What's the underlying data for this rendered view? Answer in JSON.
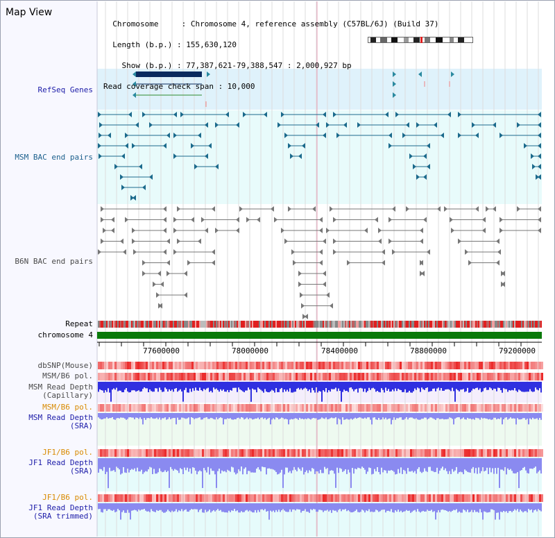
{
  "page": {
    "title": "Map View"
  },
  "info_lines": [
    "  Chromosome     : Chromosome 4, reference assembly (C57BL/6J) (Build 37)",
    "  Length (b.p.) : 155,630,120",
    "    Show (b.p.) : 77,387,621-79,388,547 : 2,000,927 bp",
    "Read coverage check span : 10,000"
  ],
  "tracks": {
    "refseq_label": "RefSeq Genes",
    "msm_bac_label": "MSM BAC end pairs",
    "b6n_bac_label": "B6N BAC end pairs",
    "repeat_label": "Repeat",
    "chromosome_label": "chromosome 4",
    "dbsnp_label": "dbSNP(Mouse)",
    "msm_b6_pol_label_1": "MSM/B6 pol.",
    "msm_depth_cap_label_1": "MSM Read Depth",
    "msm_depth_cap_label_2": "(Capillary)",
    "msm_b6_pol_label_2": "MSM/B6 pol.",
    "msm_depth_sra_label_1": "MSM Read Depth",
    "msm_depth_sra_label_2": "(SRA)",
    "jf1_b6_pol_label_1": "JF1/B6 pol.",
    "jf1_depth_sra_label_1": "JF1 Read Depth",
    "jf1_depth_sra_label_2": "(SRA)",
    "jf1_b6_pol_label_2": "JF1/B6 pol.",
    "jf1_depth_trim_label_1": "JF1 Read Depth",
    "jf1_depth_trim_label_2": "(SRA trimmed)"
  },
  "axis_ticks": [
    "77600000",
    "78000000",
    "78400000",
    "78800000",
    "79200000"
  ],
  "colors": {
    "refseq_bg": "#dff2fb",
    "msm_bg": "#e8fbfb",
    "gene_dark": "#0a2a5e",
    "gene_green": "#2e8b2e",
    "msm_line": "#1b6a8c",
    "b6n_line": "#777777",
    "chromosome_bar": "#0a7a0a",
    "depth_blue": "#3030e0",
    "depth_light": "#8a8af0",
    "pol_red": "#ff3b3b"
  }
}
